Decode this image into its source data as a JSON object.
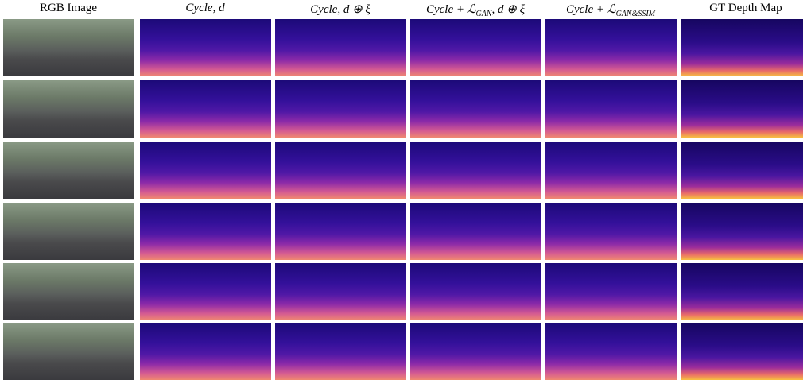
{
  "columns": [
    {
      "main": "RGB Image"
    },
    {
      "main": "Cycle",
      "tail": ", d"
    },
    {
      "main": "Cycle",
      "tail": ", d ⊕ ξ"
    },
    {
      "main": "Cycle + ℒ",
      "sub": "GAN",
      "tail": ", d ⊕ ξ"
    },
    {
      "main": "Cycle + ℒ",
      "sub": "GAN&SSIM"
    },
    {
      "main": "GT Depth Map"
    }
  ]
}
